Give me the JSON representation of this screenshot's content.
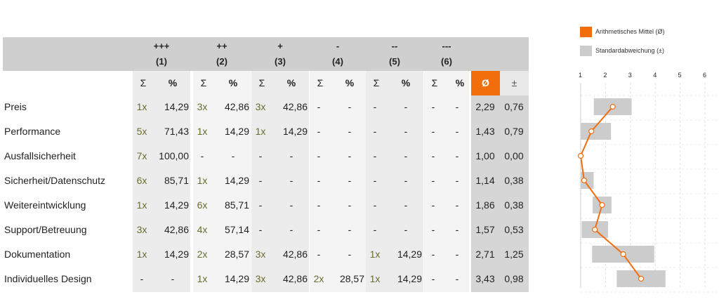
{
  "legend": {
    "mean_label": "Arithmetisches Mittel (Ø)",
    "sd_label": "Standardabweichung (±)",
    "mean_color": "#f26d0c",
    "sd_color": "#cccccc"
  },
  "table": {
    "groups": [
      {
        "sign": "+++",
        "num": "(1)"
      },
      {
        "sign": "++",
        "num": "(2)"
      },
      {
        "sign": "+",
        "num": "(3)"
      },
      {
        "sign": "-",
        "num": "(4)"
      },
      {
        "sign": "--",
        "num": "(5)"
      },
      {
        "sign": "---",
        "num": "(6)"
      }
    ],
    "sum_symbol": "Σ",
    "pct_symbol": "%",
    "mean_symbol": "Ø",
    "sd_symbol": "±",
    "rows": [
      {
        "label": "Preis",
        "cells": [
          [
            "1x",
            "14,29"
          ],
          [
            "3x",
            "42,86"
          ],
          [
            "3x",
            "42,86"
          ],
          [
            "-",
            "-"
          ],
          [
            "-",
            "-"
          ],
          [
            "-",
            "-"
          ]
        ],
        "mean": "2,29",
        "sd": "0,76"
      },
      {
        "label": "Performance",
        "cells": [
          [
            "5x",
            "71,43"
          ],
          [
            "1x",
            "14,29"
          ],
          [
            "1x",
            "14,29"
          ],
          [
            "-",
            "-"
          ],
          [
            "-",
            "-"
          ],
          [
            "-",
            "-"
          ]
        ],
        "mean": "1,43",
        "sd": "0,79"
      },
      {
        "label": "Ausfallsicherheit",
        "cells": [
          [
            "7x",
            "100,00"
          ],
          [
            "-",
            "-"
          ],
          [
            "-",
            "-"
          ],
          [
            "-",
            "-"
          ],
          [
            "-",
            "-"
          ],
          [
            "-",
            "-"
          ]
        ],
        "mean": "1,00",
        "sd": "0,00"
      },
      {
        "label": "Sicherheit/Datenschutz",
        "cells": [
          [
            "6x",
            "85,71"
          ],
          [
            "1x",
            "14,29"
          ],
          [
            "-",
            "-"
          ],
          [
            "-",
            "-"
          ],
          [
            "-",
            "-"
          ],
          [
            "-",
            "-"
          ]
        ],
        "mean": "1,14",
        "sd": "0,38"
      },
      {
        "label": "Weitereintwicklung",
        "cells": [
          [
            "1x",
            "14,29"
          ],
          [
            "6x",
            "85,71"
          ],
          [
            "-",
            "-"
          ],
          [
            "-",
            "-"
          ],
          [
            "-",
            "-"
          ],
          [
            "-",
            "-"
          ]
        ],
        "mean": "1,86",
        "sd": "0,38"
      },
      {
        "label": "Support/Betreuung",
        "cells": [
          [
            "3x",
            "42,86"
          ],
          [
            "4x",
            "57,14"
          ],
          [
            "-",
            "-"
          ],
          [
            "-",
            "-"
          ],
          [
            "-",
            "-"
          ],
          [
            "-",
            "-"
          ]
        ],
        "mean": "1,57",
        "sd": "0,53"
      },
      {
        "label": "Dokumentation",
        "cells": [
          [
            "1x",
            "14,29"
          ],
          [
            "2x",
            "28,57"
          ],
          [
            "3x",
            "42,86"
          ],
          [
            "-",
            "-"
          ],
          [
            "1x",
            "14,29"
          ],
          [
            "-",
            "-"
          ]
        ],
        "mean": "2,71",
        "sd": "1,25"
      },
      {
        "label": "Individuelles Design",
        "cells": [
          [
            "-",
            "-"
          ],
          [
            "1x",
            "14,29"
          ],
          [
            "3x",
            "42,86"
          ],
          [
            "2x",
            "28,57"
          ],
          [
            "1x",
            "14,29"
          ],
          [
            "-",
            "-"
          ]
        ],
        "mean": "3,43",
        "sd": "0,98"
      }
    ]
  },
  "chart_data": {
    "type": "line",
    "xlim": [
      1,
      6
    ],
    "ticks": [
      "1",
      "2",
      "3",
      "4",
      "5",
      "6"
    ],
    "categories": [
      "Preis",
      "Performance",
      "Ausfallsicherheit",
      "Sicherheit/Datenschutz",
      "Weitereintwicklung",
      "Support/Betreuung",
      "Dokumentation",
      "Individuelles Design"
    ],
    "series": [
      {
        "name": "Arithmetisches Mittel (Ø)",
        "values": [
          2.29,
          1.43,
          1.0,
          1.14,
          1.86,
          1.57,
          2.71,
          3.43
        ]
      },
      {
        "name": "Standardabweichung (±)",
        "values": [
          0.76,
          0.79,
          0.0,
          0.38,
          0.38,
          0.53,
          1.25,
          0.98
        ]
      }
    ],
    "grid": true,
    "legend_position": "top"
  }
}
